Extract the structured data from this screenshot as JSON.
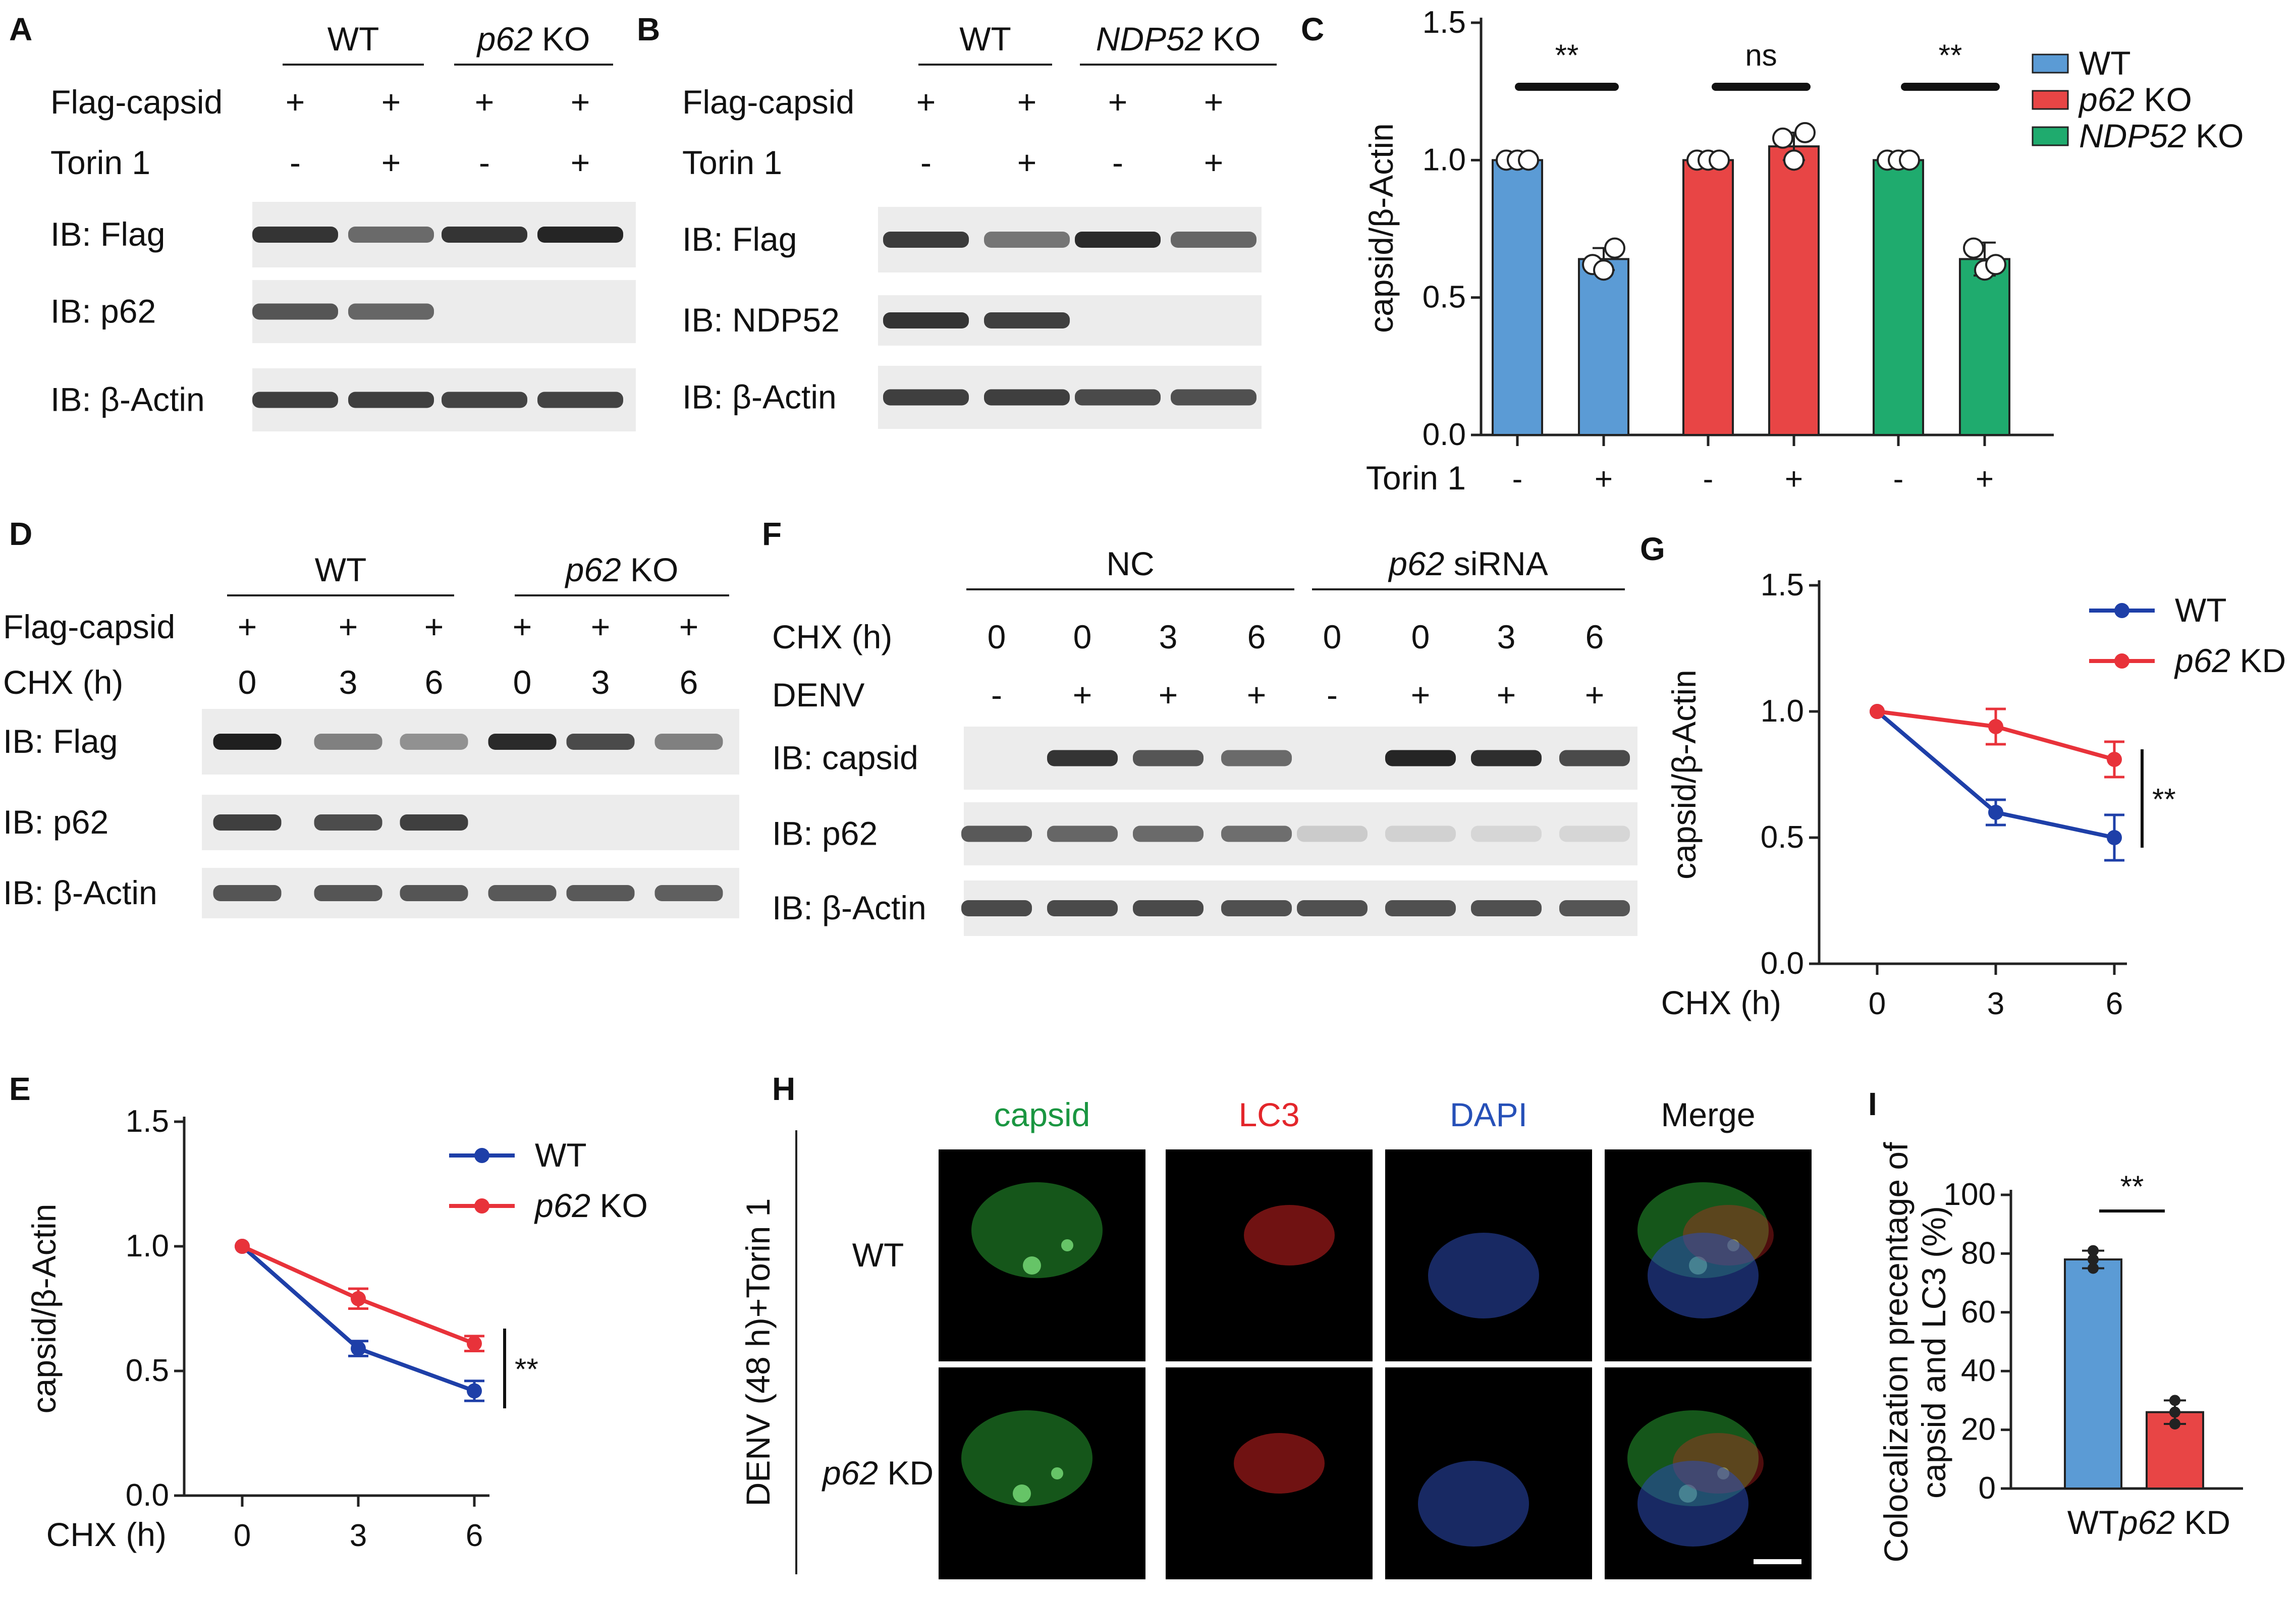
{
  "panels": [
    "A",
    "B",
    "C",
    "D",
    "E",
    "F",
    "G",
    "H",
    "I"
  ],
  "panelA": {
    "groups": [
      {
        "pre": "",
        "ital": "",
        "post": "WT"
      },
      {
        "pre": "",
        "ital": "p62",
        "post": " KO"
      }
    ],
    "rows": [
      {
        "label": "Flag-capsid",
        "vals": [
          "+",
          "+",
          "+",
          "+"
        ]
      },
      {
        "label": "Torin 1",
        "vals": [
          "-",
          "+",
          "-",
          "+"
        ]
      }
    ],
    "blots": [
      "IB: Flag",
      "IB: p62",
      "IB: β-Actin"
    ]
  },
  "panelB": {
    "groups": [
      {
        "pre": "",
        "ital": "",
        "post": "WT"
      },
      {
        "pre": "",
        "ital": "NDP52",
        "post": " KO"
      }
    ],
    "rows": [
      {
        "label": "Flag-capsid",
        "vals": [
          "+",
          "+",
          "+",
          "+"
        ]
      },
      {
        "label": "Torin 1",
        "vals": [
          "-",
          "+",
          "-",
          "+"
        ]
      }
    ],
    "blots": [
      "IB: Flag",
      "IB: NDP52",
      "IB: β-Actin"
    ]
  },
  "panelD": {
    "groups": [
      {
        "pre": "",
        "ital": "",
        "post": "WT"
      },
      {
        "pre": "",
        "ital": "p62",
        "post": " KO"
      }
    ],
    "rows": [
      {
        "label": "Flag-capsid",
        "vals": [
          "+",
          "+",
          "+",
          "+",
          "+",
          "+"
        ]
      },
      {
        "label": "CHX (h)",
        "vals": [
          "0",
          "3",
          "6",
          "0",
          "3",
          "6"
        ]
      }
    ],
    "blots": [
      "IB: Flag",
      "IB: p62",
      "IB: β-Actin"
    ]
  },
  "panelF": {
    "groups": [
      {
        "pre": "",
        "ital": "",
        "post": "NC"
      },
      {
        "pre": "",
        "ital": "p62",
        "post": " siRNA"
      }
    ],
    "rows": [
      {
        "label": "CHX (h)",
        "vals": [
          "0",
          "0",
          "3",
          "6",
          "0",
          "0",
          "3",
          "6"
        ]
      },
      {
        "label": "DENV",
        "vals": [
          "-",
          "+",
          "+",
          "+",
          "-",
          "+",
          "+",
          "+"
        ]
      }
    ],
    "blots": [
      "IB: capsid",
      "IB: p62",
      "IB: β-Actin"
    ]
  },
  "panelH": {
    "columns": [
      {
        "label": "capsid",
        "color": "#1a9641"
      },
      {
        "label": "LC3",
        "color": "#e3262b"
      },
      {
        "label": "DAPI",
        "color": "#2650b8"
      },
      {
        "label": "Merge",
        "color": "#111111"
      }
    ],
    "rowLabels": [
      {
        "ital": "",
        "post": "WT"
      },
      {
        "ital": "p62",
        "post": " KD"
      }
    ],
    "sideLabel": "DENV  (48 h)+Torin 1"
  },
  "chart_data": [
    {
      "panel": "C",
      "type": "bar",
      "categories": [
        "WT -",
        "WT +",
        "p62 KO -",
        "p62 KO +",
        "NDP52 KO -",
        "NDP52 KO +"
      ],
      "values": [
        1.0,
        0.64,
        1.0,
        1.05,
        1.0,
        0.64
      ],
      "errors": [
        0.0,
        0.04,
        0.0,
        0.05,
        0.0,
        0.06
      ],
      "points": [
        [
          1.0,
          1.0,
          1.0
        ],
        [
          0.62,
          0.6,
          0.68
        ],
        [
          1.0,
          1.0,
          1.0
        ],
        [
          1.08,
          1.0,
          1.1
        ],
        [
          1.0,
          1.0,
          1.0
        ],
        [
          0.68,
          0.6,
          0.62
        ]
      ],
      "colors": [
        "#5b9bd5",
        "#5b9bd5",
        "#e84545",
        "#e84545",
        "#1fab6e",
        "#1fab6e"
      ],
      "ylabel": "capsid/β-Actin",
      "xlabel": "Torin 1",
      "xticks": [
        "-",
        "+",
        "-",
        "+",
        "-",
        "+"
      ],
      "yticks": [
        "0.0",
        "0.5",
        "1.0",
        "1.5"
      ],
      "ylim": [
        0,
        1.5
      ],
      "significance": [
        "**",
        "ns",
        "**"
      ],
      "legend": [
        {
          "pre": "",
          "ital": "",
          "post": "WT",
          "color": "#5b9bd5"
        },
        {
          "pre": "",
          "ital": "p62",
          "post": " KO",
          "color": "#e84545"
        },
        {
          "pre": "",
          "ital": "NDP52",
          "post": " KO",
          "color": "#1fab6e"
        }
      ],
      "legend_position": "top-right"
    },
    {
      "panel": "E",
      "type": "line",
      "x": [
        0,
        3,
        6
      ],
      "xticks": [
        "0",
        "3",
        "6"
      ],
      "series": [
        {
          "name": "WT",
          "values": [
            1.0,
            0.59,
            0.42
          ],
          "errors": [
            0,
            0.03,
            0.04
          ],
          "color": "#1e3fa8"
        },
        {
          "name": "p62 KO",
          "values": [
            1.0,
            0.79,
            0.61
          ],
          "errors": [
            0,
            0.04,
            0.03
          ],
          "color": "#e8323a"
        }
      ],
      "legend": [
        {
          "ital": "",
          "post": "WT"
        },
        {
          "ital": "p62",
          "post": " KO"
        }
      ],
      "ylabel": "capsid/β-Actin",
      "xlabel": "CHX (h)",
      "yticks": [
        "0.0",
        "0.5",
        "1.0",
        "1.5"
      ],
      "ylim": [
        0,
        1.5
      ],
      "significance": "**"
    },
    {
      "panel": "G",
      "type": "line",
      "x": [
        0,
        3,
        6
      ],
      "xticks": [
        "0",
        "3",
        "6"
      ],
      "series": [
        {
          "name": "WT",
          "values": [
            1.0,
            0.6,
            0.5
          ],
          "errors": [
            0,
            0.05,
            0.09
          ],
          "color": "#1e3fa8"
        },
        {
          "name": "p62 KD",
          "values": [
            1.0,
            0.94,
            0.81
          ],
          "errors": [
            0,
            0.07,
            0.07
          ],
          "color": "#e8323a"
        }
      ],
      "legend": [
        {
          "ital": "",
          "post": "WT"
        },
        {
          "ital": "p62",
          "post": " KD"
        }
      ],
      "ylabel": "capsid/β-Actin",
      "xlabel": "CHX (h)",
      "yticks": [
        "0.0",
        "0.5",
        "1.0",
        "1.5"
      ],
      "ylim": [
        0,
        1.5
      ],
      "significance": "**"
    },
    {
      "panel": "I",
      "type": "bar",
      "categories": [
        {
          "ital": "",
          "post": "WT"
        },
        {
          "ital": "p62",
          "post": " KD"
        }
      ],
      "values": [
        78,
        26
      ],
      "errors": [
        3,
        4
      ],
      "points": [
        [
          75,
          78,
          81
        ],
        [
          22,
          26,
          30
        ]
      ],
      "colors": [
        "#5b9bd5",
        "#e84545"
      ],
      "ylabel_lines": [
        "Colocalization precentage of",
        "capsid and LC3 (%)"
      ],
      "yticks": [
        "0",
        "20",
        "40",
        "60",
        "80",
        "100"
      ],
      "ylim": [
        0,
        100
      ],
      "significance": "**"
    }
  ]
}
